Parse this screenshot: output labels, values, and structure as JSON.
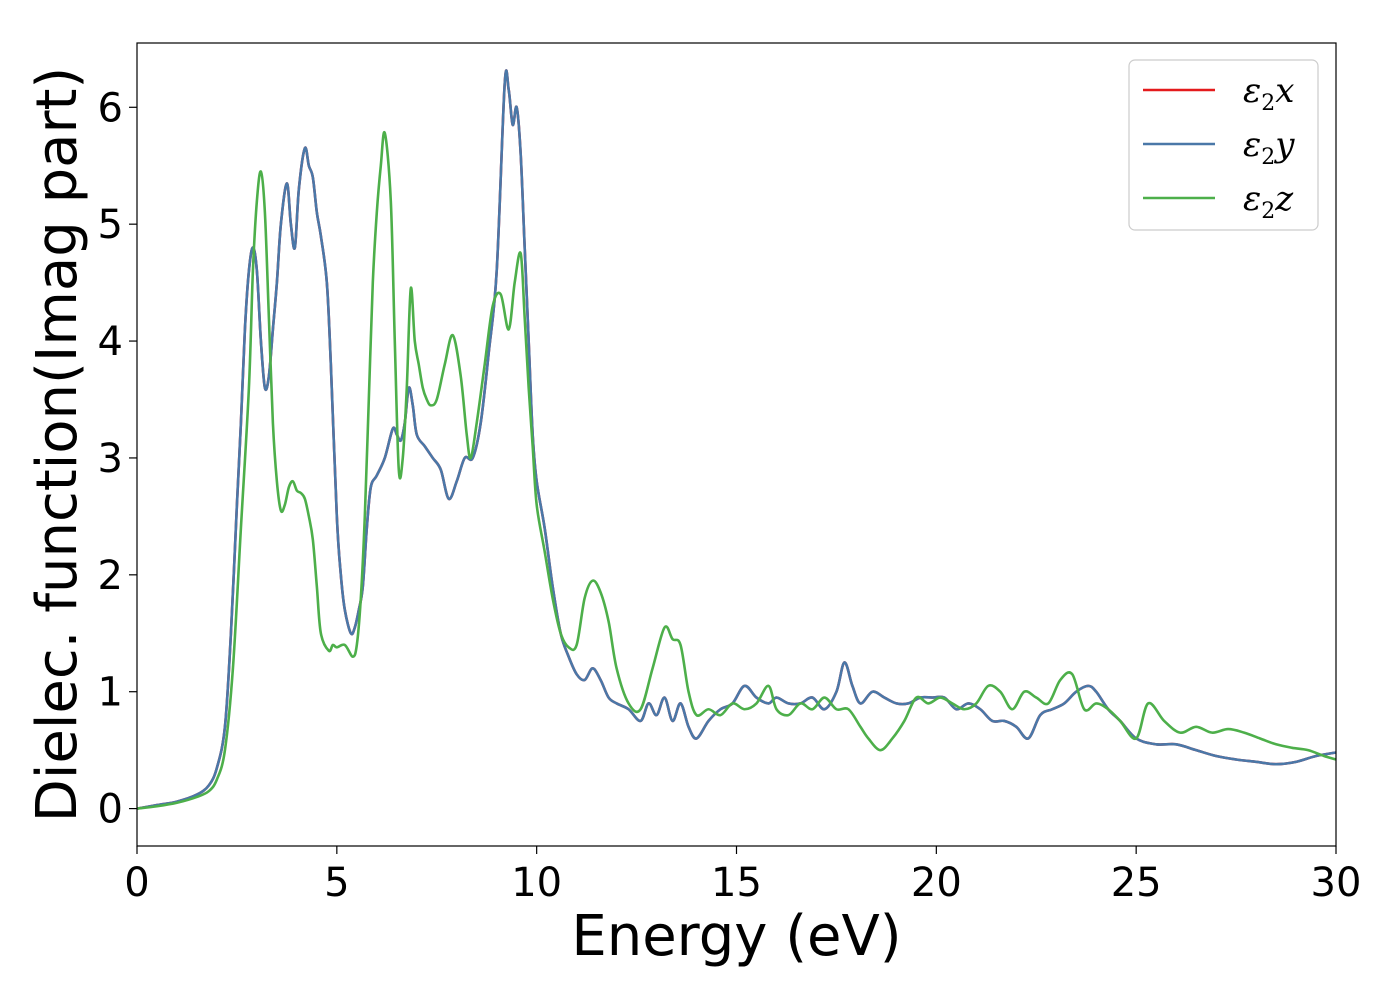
{
  "chart_data": {
    "type": "line",
    "xlabel": "Energy (eV)",
    "ylabel": "Dielec. function(Imag part)",
    "xlim": [
      0,
      30
    ],
    "ylim": [
      -0.32,
      6.55
    ],
    "xticks": [
      0,
      5,
      10,
      15,
      20,
      25,
      30
    ],
    "yticks": [
      0,
      1,
      2,
      3,
      4,
      5,
      6
    ],
    "grid": false,
    "legend_position": "top-right",
    "series": [
      {
        "name": "x",
        "legend_symbol": "ε",
        "legend_subscript": "2",
        "color": "#e41a1c",
        "x": [
          0,
          0.5,
          1,
          1.5,
          1.8,
          2.0,
          2.2,
          2.35,
          2.5,
          2.6,
          2.7,
          2.8,
          2.9,
          3.0,
          3.1,
          3.2,
          3.3,
          3.4,
          3.5,
          3.6,
          3.75,
          3.85,
          3.95,
          4.05,
          4.2,
          4.3,
          4.4,
          4.5,
          4.6,
          4.75,
          4.85,
          5.0,
          5.1,
          5.2,
          5.35,
          5.45,
          5.55,
          5.65,
          5.75,
          5.85,
          6.0,
          6.2,
          6.4,
          6.5,
          6.6,
          6.7,
          6.8,
          6.9,
          7.0,
          7.2,
          7.4,
          7.6,
          7.8,
          8.0,
          8.2,
          8.4,
          8.6,
          8.8,
          9.0,
          9.2,
          9.3,
          9.4,
          9.5,
          9.6,
          9.7,
          9.8,
          9.9,
          10.0,
          10.2,
          10.4,
          10.6,
          10.8,
          11.0,
          11.2,
          11.4,
          11.6,
          11.8,
          12.0,
          12.3,
          12.6,
          12.8,
          13.0,
          13.2,
          13.4,
          13.6,
          13.8,
          14.0,
          14.3,
          14.6,
          14.9,
          15.2,
          15.5,
          15.8,
          16.0,
          16.3,
          16.6,
          16.9,
          17.2,
          17.5,
          17.7,
          17.9,
          18.1,
          18.4,
          18.7,
          19.0,
          19.3,
          19.6,
          19.9,
          20.2,
          20.5,
          20.8,
          21.1,
          21.4,
          21.7,
          22.0,
          22.3,
          22.6,
          22.9,
          23.2,
          23.5,
          23.8,
          24.0,
          24.3,
          24.6,
          25.0,
          25.5,
          26.0,
          26.5,
          27.0,
          27.5,
          28.0,
          28.5,
          29.0,
          29.5,
          30.0
        ],
        "y": [
          0,
          0.03,
          0.06,
          0.12,
          0.2,
          0.35,
          0.7,
          1.5,
          2.6,
          3.3,
          4.1,
          4.6,
          4.8,
          4.6,
          4.0,
          3.6,
          3.7,
          4.1,
          4.5,
          5.0,
          5.35,
          5.0,
          4.8,
          5.3,
          5.65,
          5.5,
          5.4,
          5.1,
          4.9,
          4.5,
          3.8,
          2.5,
          2.0,
          1.7,
          1.5,
          1.55,
          1.7,
          1.9,
          2.4,
          2.75,
          2.85,
          3.0,
          3.25,
          3.2,
          3.15,
          3.3,
          3.6,
          3.45,
          3.2,
          3.1,
          3.0,
          2.9,
          2.65,
          2.8,
          3.0,
          3.0,
          3.3,
          3.9,
          4.6,
          6.2,
          6.15,
          5.85,
          6.0,
          5.6,
          4.8,
          4.0,
          3.2,
          2.8,
          2.4,
          1.9,
          1.5,
          1.3,
          1.15,
          1.1,
          1.2,
          1.1,
          0.95,
          0.9,
          0.85,
          0.75,
          0.9,
          0.8,
          0.95,
          0.75,
          0.9,
          0.7,
          0.6,
          0.75,
          0.85,
          0.9,
          1.05,
          0.95,
          0.9,
          0.95,
          0.9,
          0.9,
          0.95,
          0.85,
          1.0,
          1.25,
          1.05,
          0.9,
          1.0,
          0.95,
          0.9,
          0.9,
          0.95,
          0.95,
          0.95,
          0.85,
          0.9,
          0.85,
          0.75,
          0.75,
          0.7,
          0.6,
          0.8,
          0.85,
          0.9,
          1.0,
          1.05,
          1.0,
          0.85,
          0.75,
          0.6,
          0.55,
          0.55,
          0.5,
          0.45,
          0.42,
          0.4,
          0.38,
          0.4,
          0.45,
          0.48
        ]
      },
      {
        "name": "y",
        "legend_symbol": "ε",
        "legend_subscript": "2",
        "color": "#4a78a8",
        "x": [
          0,
          0.5,
          1,
          1.5,
          1.8,
          2.0,
          2.2,
          2.35,
          2.5,
          2.6,
          2.7,
          2.8,
          2.9,
          3.0,
          3.1,
          3.2,
          3.3,
          3.4,
          3.5,
          3.6,
          3.75,
          3.85,
          3.95,
          4.05,
          4.2,
          4.3,
          4.4,
          4.5,
          4.6,
          4.75,
          4.85,
          5.0,
          5.1,
          5.2,
          5.35,
          5.45,
          5.55,
          5.65,
          5.75,
          5.85,
          6.0,
          6.2,
          6.4,
          6.5,
          6.6,
          6.7,
          6.8,
          6.9,
          7.0,
          7.2,
          7.4,
          7.6,
          7.8,
          8.0,
          8.2,
          8.4,
          8.6,
          8.8,
          9.0,
          9.2,
          9.3,
          9.4,
          9.5,
          9.6,
          9.7,
          9.8,
          9.9,
          10.0,
          10.2,
          10.4,
          10.6,
          10.8,
          11.0,
          11.2,
          11.4,
          11.6,
          11.8,
          12.0,
          12.3,
          12.6,
          12.8,
          13.0,
          13.2,
          13.4,
          13.6,
          13.8,
          14.0,
          14.3,
          14.6,
          14.9,
          15.2,
          15.5,
          15.8,
          16.0,
          16.3,
          16.6,
          16.9,
          17.2,
          17.5,
          17.7,
          17.9,
          18.1,
          18.4,
          18.7,
          19.0,
          19.3,
          19.6,
          19.9,
          20.2,
          20.5,
          20.8,
          21.1,
          21.4,
          21.7,
          22.0,
          22.3,
          22.6,
          22.9,
          23.2,
          23.5,
          23.8,
          24.0,
          24.3,
          24.6,
          25.0,
          25.5,
          26.0,
          26.5,
          27.0,
          27.5,
          28.0,
          28.5,
          29.0,
          29.5,
          30.0
        ],
        "y": [
          0,
          0.03,
          0.06,
          0.12,
          0.2,
          0.35,
          0.7,
          1.5,
          2.6,
          3.3,
          4.1,
          4.6,
          4.8,
          4.6,
          4.0,
          3.6,
          3.7,
          4.1,
          4.5,
          5.0,
          5.35,
          5.0,
          4.8,
          5.3,
          5.65,
          5.5,
          5.4,
          5.1,
          4.9,
          4.5,
          3.8,
          2.5,
          2.0,
          1.7,
          1.5,
          1.55,
          1.7,
          1.9,
          2.4,
          2.75,
          2.85,
          3.0,
          3.25,
          3.2,
          3.15,
          3.3,
          3.6,
          3.45,
          3.2,
          3.1,
          3.0,
          2.9,
          2.65,
          2.8,
          3.0,
          3.0,
          3.3,
          3.9,
          4.6,
          6.2,
          6.15,
          5.85,
          6.0,
          5.6,
          4.8,
          4.0,
          3.2,
          2.8,
          2.4,
          1.9,
          1.5,
          1.3,
          1.15,
          1.1,
          1.2,
          1.1,
          0.95,
          0.9,
          0.85,
          0.75,
          0.9,
          0.8,
          0.95,
          0.75,
          0.9,
          0.7,
          0.6,
          0.75,
          0.85,
          0.9,
          1.05,
          0.95,
          0.9,
          0.95,
          0.9,
          0.9,
          0.95,
          0.85,
          1.0,
          1.25,
          1.05,
          0.9,
          1.0,
          0.95,
          0.9,
          0.9,
          0.95,
          0.95,
          0.95,
          0.85,
          0.9,
          0.85,
          0.75,
          0.75,
          0.7,
          0.6,
          0.8,
          0.85,
          0.9,
          1.0,
          1.05,
          1.0,
          0.85,
          0.75,
          0.6,
          0.55,
          0.55,
          0.5,
          0.45,
          0.42,
          0.4,
          0.38,
          0.4,
          0.45,
          0.48
        ]
      },
      {
        "name": "z",
        "legend_symbol": "ε",
        "legend_subscript": "2",
        "color": "#4daf4a",
        "x": [
          0,
          0.5,
          1,
          1.5,
          1.8,
          2.0,
          2.2,
          2.4,
          2.6,
          2.8,
          2.9,
          3.0,
          3.1,
          3.2,
          3.3,
          3.4,
          3.5,
          3.6,
          3.7,
          3.8,
          3.9,
          4.0,
          4.1,
          4.2,
          4.3,
          4.4,
          4.5,
          4.6,
          4.8,
          4.9,
          5.0,
          5.2,
          5.4,
          5.5,
          5.6,
          5.7,
          5.8,
          5.9,
          6.0,
          6.1,
          6.2,
          6.35,
          6.45,
          6.55,
          6.65,
          6.75,
          6.85,
          6.95,
          7.05,
          7.15,
          7.25,
          7.35,
          7.5,
          7.7,
          7.9,
          8.1,
          8.25,
          8.35,
          8.5,
          8.7,
          8.9,
          9.1,
          9.3,
          9.45,
          9.6,
          9.7,
          9.8,
          9.9,
          10.0,
          10.2,
          10.4,
          10.6,
          10.8,
          11.0,
          11.2,
          11.4,
          11.6,
          11.8,
          12.0,
          12.3,
          12.6,
          12.9,
          13.2,
          13.4,
          13.6,
          13.8,
          14.0,
          14.3,
          14.6,
          14.9,
          15.2,
          15.5,
          15.8,
          16.0,
          16.3,
          16.6,
          16.9,
          17.2,
          17.5,
          17.8,
          18.1,
          18.3,
          18.6,
          18.9,
          19.2,
          19.5,
          19.8,
          20.1,
          20.4,
          20.7,
          21.0,
          21.3,
          21.6,
          21.9,
          22.2,
          22.5,
          22.8,
          23.1,
          23.4,
          23.7,
          24.0,
          24.3,
          24.6,
          25.0,
          25.3,
          25.7,
          26.1,
          26.5,
          26.9,
          27.3,
          27.7,
          28.1,
          28.5,
          28.9,
          29.3,
          29.7,
          30.0
        ],
        "y": [
          0,
          0.02,
          0.05,
          0.1,
          0.15,
          0.25,
          0.5,
          1.2,
          2.4,
          3.6,
          4.6,
          5.2,
          5.45,
          5.1,
          4.2,
          3.3,
          2.8,
          2.55,
          2.6,
          2.75,
          2.8,
          2.72,
          2.7,
          2.65,
          2.5,
          2.3,
          1.9,
          1.5,
          1.35,
          1.4,
          1.38,
          1.4,
          1.3,
          1.4,
          1.8,
          2.5,
          3.5,
          4.5,
          5.1,
          5.5,
          5.78,
          5.2,
          4.0,
          2.9,
          3.0,
          3.6,
          4.45,
          4.0,
          3.8,
          3.6,
          3.5,
          3.45,
          3.5,
          3.8,
          4.05,
          3.7,
          3.2,
          3.0,
          3.3,
          3.8,
          4.3,
          4.4,
          4.1,
          4.5,
          4.75,
          4.2,
          3.6,
          3.1,
          2.6,
          2.2,
          1.8,
          1.5,
          1.38,
          1.4,
          1.8,
          1.95,
          1.85,
          1.6,
          1.2,
          0.9,
          0.85,
          1.2,
          1.55,
          1.45,
          1.4,
          1.0,
          0.8,
          0.85,
          0.8,
          0.9,
          0.85,
          0.9,
          1.05,
          0.85,
          0.8,
          0.9,
          0.85,
          0.95,
          0.85,
          0.85,
          0.7,
          0.6,
          0.5,
          0.6,
          0.75,
          0.95,
          0.9,
          0.95,
          0.9,
          0.85,
          0.9,
          1.05,
          1.0,
          0.85,
          1.0,
          0.95,
          0.9,
          1.1,
          1.15,
          0.85,
          0.9,
          0.85,
          0.75,
          0.6,
          0.9,
          0.75,
          0.65,
          0.7,
          0.65,
          0.68,
          0.65,
          0.6,
          0.55,
          0.52,
          0.5,
          0.45,
          0.42
        ]
      }
    ]
  }
}
